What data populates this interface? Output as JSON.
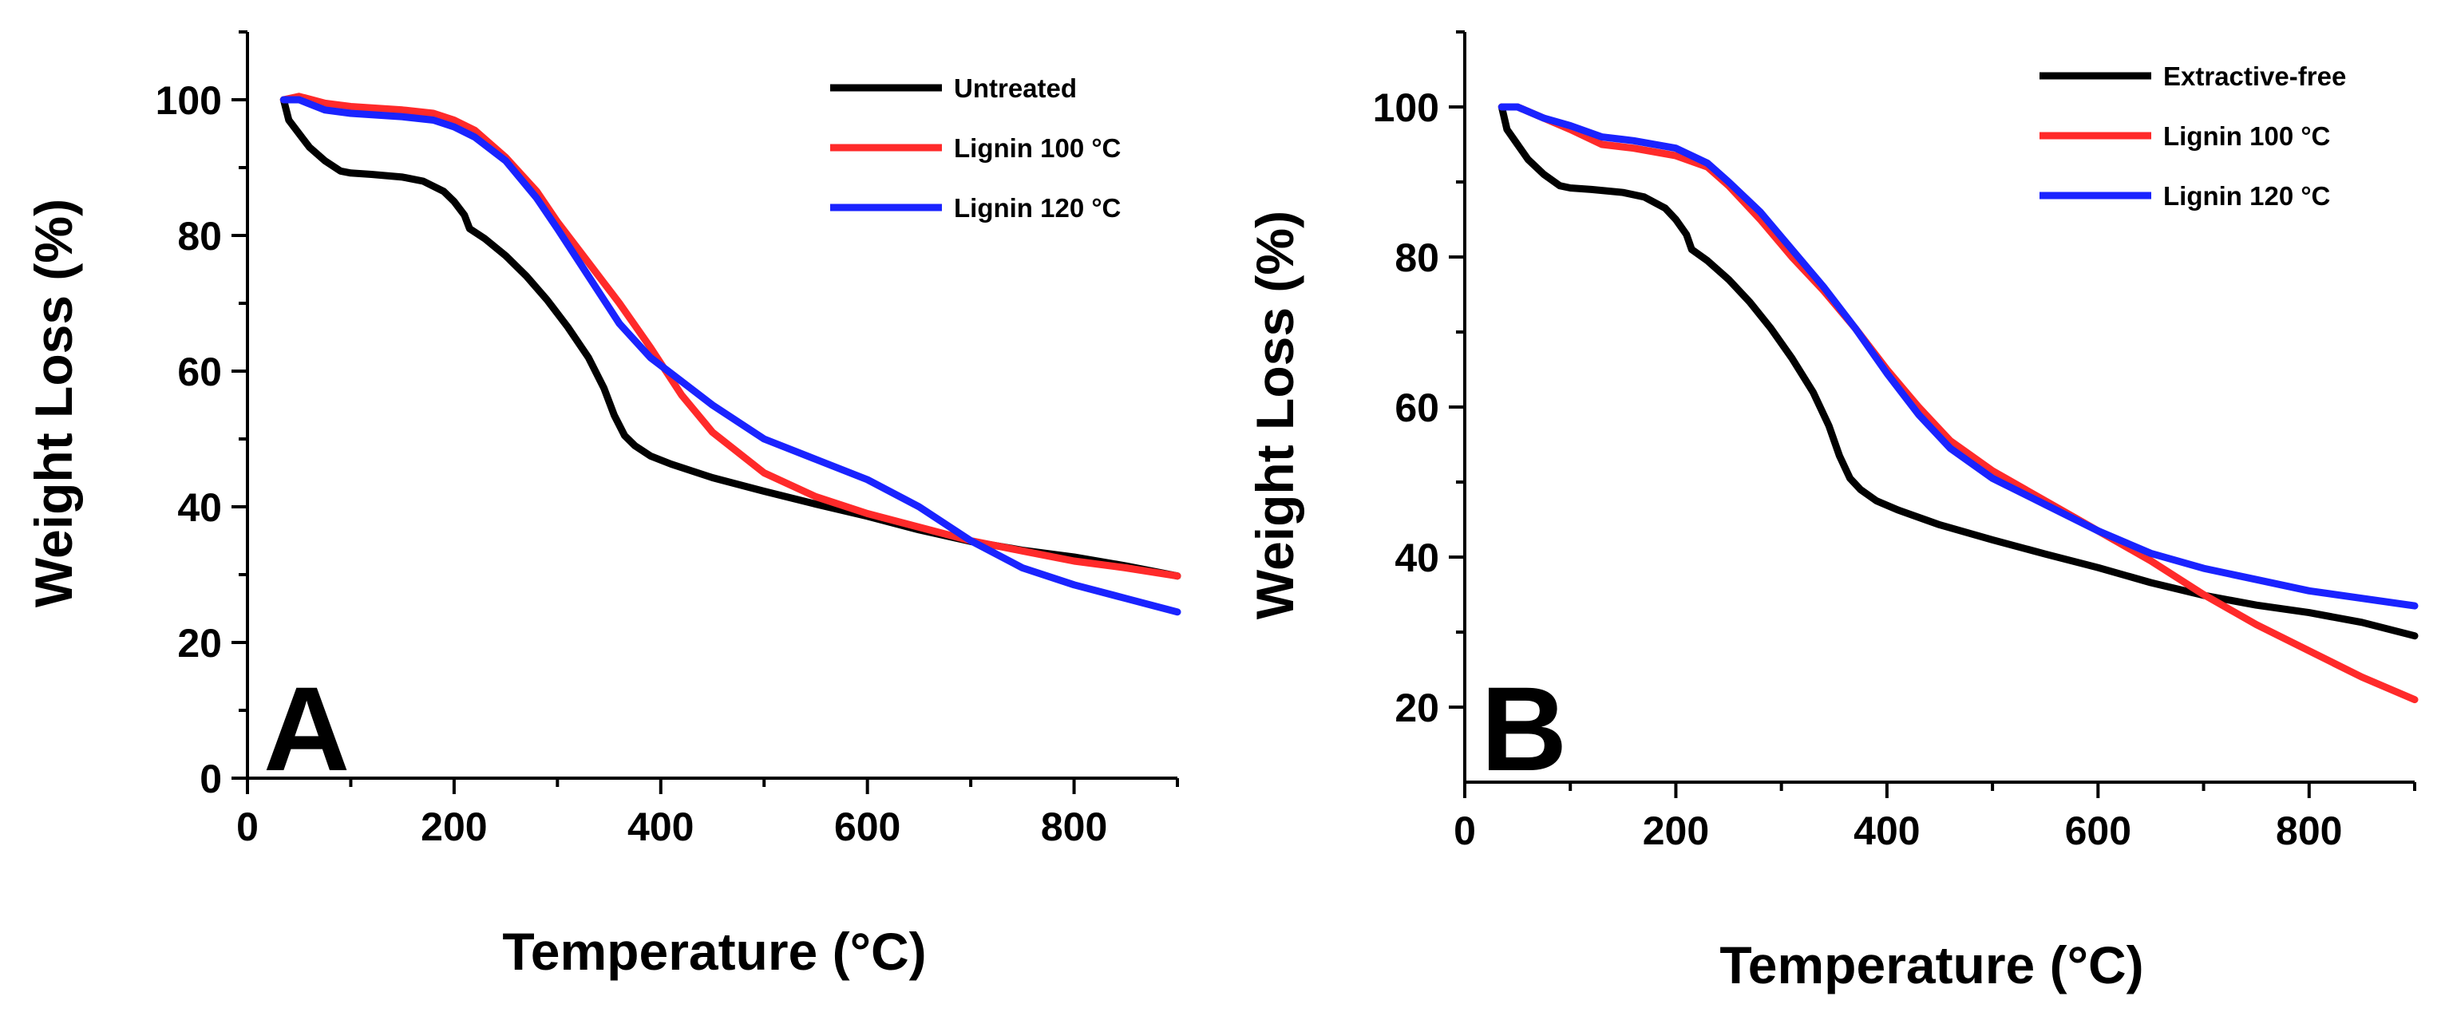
{
  "chart_data": [
    {
      "type": "line",
      "panel_label": "A",
      "xlabel": "Temperature (°C)",
      "ylabel": "Weight Loss (%)",
      "xlim": [
        0,
        900
      ],
      "ylim": [
        0,
        110
      ],
      "xticks": [
        0,
        200,
        400,
        600,
        800
      ],
      "yticks": [
        0,
        20,
        40,
        60,
        80,
        100
      ],
      "legend_position": "top-right",
      "series": [
        {
          "name": "Untreated",
          "color": "#000000",
          "x": [
            35,
            40,
            50,
            60,
            75,
            90,
            100,
            120,
            150,
            170,
            190,
            200,
            210,
            215,
            230,
            250,
            270,
            290,
            310,
            330,
            345,
            355,
            365,
            375,
            390,
            410,
            450,
            500,
            550,
            600,
            650,
            700,
            750,
            800,
            850,
            900
          ],
          "y": [
            100,
            97,
            95,
            93,
            91,
            89.5,
            89.2,
            89,
            88.6,
            88,
            86.5,
            85,
            83,
            81,
            79.5,
            77,
            74,
            70.5,
            66.5,
            62,
            57.5,
            53.5,
            50.5,
            49,
            47.5,
            46.3,
            44.3,
            42.3,
            40.4,
            38.6,
            36.6,
            34.9,
            33.6,
            32.6,
            31.3,
            29.8
          ]
        },
        {
          "name": "Lignin 100 °C",
          "color": "#ff2a2a",
          "x": [
            35,
            50,
            75,
            100,
            150,
            180,
            200,
            220,
            250,
            280,
            300,
            330,
            360,
            390,
            420,
            450,
            500,
            550,
            600,
            650,
            700,
            750,
            800,
            850,
            900
          ],
          "y": [
            100,
            100.5,
            99.5,
            99,
            98.5,
            98,
            97,
            95.5,
            91.5,
            86.5,
            82,
            76,
            70,
            63.5,
            56.5,
            51,
            45,
            41.5,
            39,
            37,
            35,
            33.5,
            32,
            31,
            29.8
          ]
        },
        {
          "name": "Lignin 120 °C",
          "color": "#1a23ff",
          "x": [
            35,
            50,
            75,
            100,
            150,
            180,
            200,
            220,
            250,
            280,
            300,
            330,
            360,
            390,
            420,
            450,
            500,
            550,
            600,
            650,
            680,
            700,
            750,
            800,
            850,
            900
          ],
          "y": [
            100,
            100,
            98.5,
            98,
            97.5,
            97,
            96,
            94.5,
            91,
            85.5,
            81,
            74,
            67,
            62,
            58.5,
            55,
            50,
            47,
            44,
            40,
            37,
            35,
            31,
            28.5,
            26.5,
            24.5
          ]
        }
      ]
    },
    {
      "type": "line",
      "panel_label": "B",
      "xlabel": "Temperature (°C)",
      "ylabel": "Weight Loss (%)",
      "xlim": [
        0,
        900
      ],
      "ylim": [
        10,
        110
      ],
      "xticks": [
        0,
        200,
        400,
        600,
        800
      ],
      "yticks": [
        20,
        40,
        60,
        80,
        100
      ],
      "legend_position": "top-right",
      "series": [
        {
          "name": "Extractive-free",
          "color": "#000000",
          "x": [
            35,
            40,
            50,
            60,
            75,
            90,
            100,
            120,
            150,
            170,
            190,
            200,
            210,
            215,
            230,
            250,
            270,
            290,
            310,
            330,
            345,
            355,
            365,
            375,
            390,
            410,
            450,
            500,
            550,
            600,
            650,
            700,
            750,
            800,
            850,
            900
          ],
          "y": [
            100,
            97,
            95,
            93,
            91,
            89.5,
            89.2,
            89,
            88.6,
            88,
            86.5,
            85,
            83,
            81,
            79.5,
            77,
            74,
            70.5,
            66.5,
            62,
            57.5,
            53.5,
            50.5,
            49,
            47.5,
            46.3,
            44.3,
            42.3,
            40.4,
            38.6,
            36.6,
            34.9,
            33.6,
            32.6,
            31.3,
            29.5
          ]
        },
        {
          "name": "Lignin 100 °C",
          "color": "#ff2a2a",
          "x": [
            35,
            50,
            75,
            100,
            130,
            160,
            200,
            230,
            250,
            280,
            310,
            340,
            370,
            400,
            430,
            460,
            500,
            550,
            600,
            650,
            700,
            750,
            800,
            850,
            900
          ],
          "y": [
            100,
            100,
            98.5,
            97,
            95,
            94.5,
            93.5,
            92,
            89.5,
            85,
            80,
            75.5,
            70.5,
            65,
            60,
            55.5,
            51.5,
            47.5,
            43.5,
            39.5,
            35,
            31,
            27.5,
            24,
            21
          ]
        },
        {
          "name": "Lignin 120 °C",
          "color": "#1a23ff",
          "x": [
            35,
            50,
            75,
            100,
            130,
            160,
            200,
            230,
            250,
            280,
            310,
            340,
            370,
            400,
            430,
            460,
            500,
            550,
            600,
            650,
            700,
            750,
            800,
            850,
            900
          ],
          "y": [
            100,
            100,
            98.5,
            97.5,
            96,
            95.5,
            94.5,
            92.5,
            90,
            86,
            81,
            76,
            70.5,
            64.5,
            59,
            54.5,
            50.5,
            47,
            43.5,
            40.5,
            38.5,
            37,
            35.5,
            34.5,
            33.5
          ]
        }
      ]
    }
  ]
}
